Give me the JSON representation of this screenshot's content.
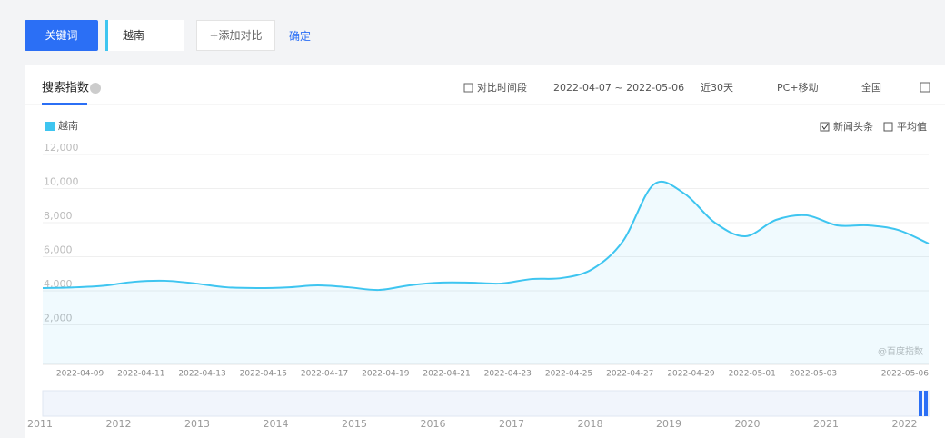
{
  "toolbar": {
    "keyword_button": "关键词",
    "keyword": "越南",
    "add_compare": "+添加对比",
    "confirm": "确定"
  },
  "panel": {
    "tab": "搜索指数",
    "compare_period": "对比时间段",
    "date_range": "2022-04-07 ~ 2022-05-06",
    "period": "近30天",
    "device": "PC+移动",
    "region": "全国",
    "news_headlines": "新闻头条",
    "average": "平均值",
    "watermark": "@百度指数"
  },
  "chart_data": {
    "type": "line",
    "categories": [
      null,
      null,
      "2022-04-09",
      null,
      "2022-04-11",
      null,
      "2022-04-13",
      null,
      "2022-04-15",
      null,
      "2022-04-17",
      null,
      "2022-04-19",
      null,
      "2022-04-21",
      null,
      "2022-04-23",
      null,
      "2022-04-25",
      null,
      "2022-04-27",
      null,
      "2022-04-29",
      null,
      "2022-05-01",
      null,
      "2022-05-03",
      null,
      null,
      "2022-05-06"
    ],
    "series": [
      {
        "name": "越南",
        "color": "#3ec5f0",
        "values": [
          4160,
          4200,
          4300,
          4530,
          4590,
          4430,
          4210,
          4160,
          4200,
          4320,
          4210,
          4050,
          4320,
          4480,
          4480,
          4430,
          4690,
          4750,
          5280,
          6930,
          10240,
          9710,
          8000,
          7200,
          8160,
          8430,
          7840,
          7840,
          7570,
          6770
        ]
      }
    ],
    "ylim": [
      0,
      12000
    ],
    "yticks": [
      {
        "value": 2000,
        "label": "2,000"
      },
      {
        "value": 4000,
        "label": "4,000"
      },
      {
        "value": 6000,
        "label": "6,000"
      },
      {
        "value": 8000,
        "label": "8,000"
      },
      {
        "value": 10000,
        "label": "10,000"
      },
      {
        "value": 12000,
        "label": "12,000"
      }
    ],
    "grid": true
  },
  "navigator": {
    "years": [
      "2011",
      "2012",
      "2013",
      "2014",
      "2015",
      "2016",
      "2017",
      "2018",
      "2019",
      "2020",
      "2021",
      "2022"
    ]
  }
}
